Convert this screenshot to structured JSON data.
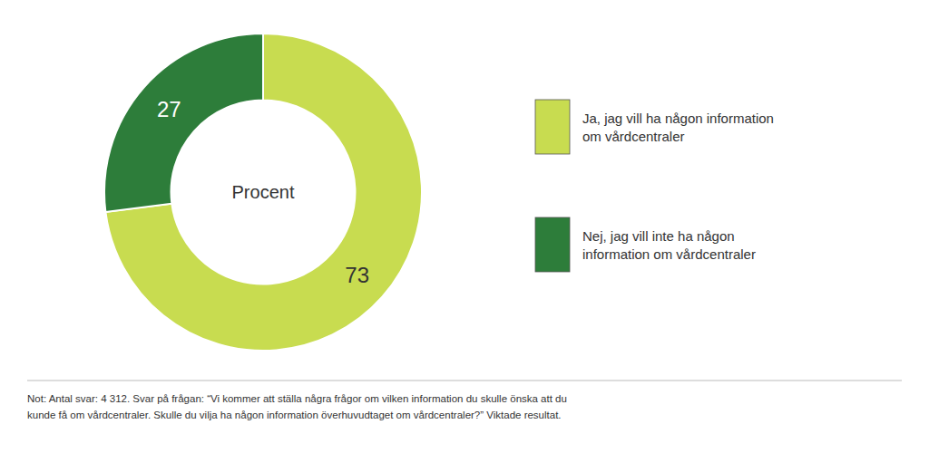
{
  "chart_data": {
    "type": "donut",
    "categories": [
      "Ja, jag vill ha någon information\nom vårdcentraler",
      "Nej, jag vill inte ha någon\ninformation om vårdcentraler"
    ],
    "values": [
      73,
      27
    ],
    "colors": [
      "#c8dc50",
      "#2d7d3a"
    ],
    "data_labels": true,
    "legend": "right",
    "annotations": [
      "Procent",
      "Not: Antal svar: 4 312. Svar på frågan: “Vi kommer att ställa några frågor om vilken information du skulle önska att du\nkunde få om vårdcentraler. Skulle du vilja ha någon information överhuvudtaget om vårdcentraler?” Viktade resultat."
    ]
  }
}
